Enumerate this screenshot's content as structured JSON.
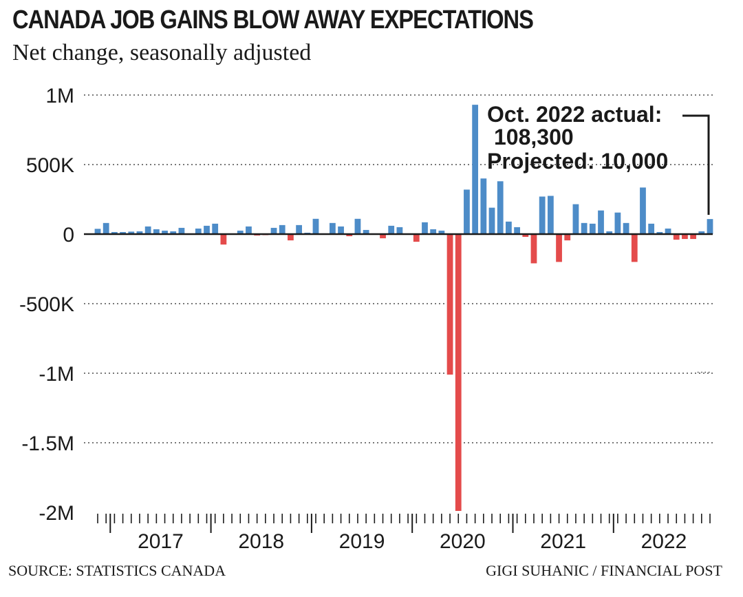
{
  "chart_data": {
    "type": "bar",
    "title": "CANADA JOB GAINS BLOW AWAY EXPECTATIONS",
    "subtitle": "Net change, seasonally adjusted",
    "y_ticks": [
      "1M",
      "500K",
      "0",
      "-500K",
      "-1M",
      "-1.5M",
      "-2M"
    ],
    "y_tick_values": [
      1000000,
      500000,
      0,
      -500000,
      -1000000,
      -1500000,
      -2000000
    ],
    "ylim": [
      -2000000,
      1000000
    ],
    "x_year_labels": [
      "2017",
      "2018",
      "2019",
      "2020",
      "2021",
      "2022"
    ],
    "x_start": "2016-11",
    "x_end": "2022-10",
    "grid": "dotted horizontal",
    "colors": {
      "positive": "#4d8cc8",
      "negative": "#e44b4b",
      "text": "#1a1a1a",
      "grid": "#777777"
    },
    "values": [
      38000,
      80000,
      15000,
      15000,
      18000,
      20000,
      55000,
      35000,
      25000,
      20000,
      45000,
      5000,
      40000,
      60000,
      75000,
      -75000,
      5000,
      25000,
      55000,
      -10000,
      -5000,
      45000,
      65000,
      -45000,
      65000,
      10000,
      110000,
      5000,
      80000,
      55000,
      -15000,
      110000,
      30000,
      5000,
      -30000,
      60000,
      50000,
      5000,
      -55000,
      85000,
      35000,
      25000,
      -1010000,
      -1990000,
      320000,
      930000,
      400000,
      190000,
      380000,
      90000,
      50000,
      -20000,
      -210000,
      270000,
      275000,
      -200000,
      -45000,
      215000,
      80000,
      75000,
      170000,
      20000,
      155000,
      80000,
      -200000,
      335000,
      75000,
      15000,
      40000,
      -40000,
      -35000,
      -35000,
      20000,
      108300
    ],
    "annotation": {
      "line1": "Oct. 2022 actual:",
      "line2": "108,300",
      "line3": "Projected: 10,000"
    }
  },
  "footer": {
    "source": "SOURCE: STATISTICS CANADA",
    "credit": "GIGI SUHANIC / FINANCIAL POST"
  }
}
